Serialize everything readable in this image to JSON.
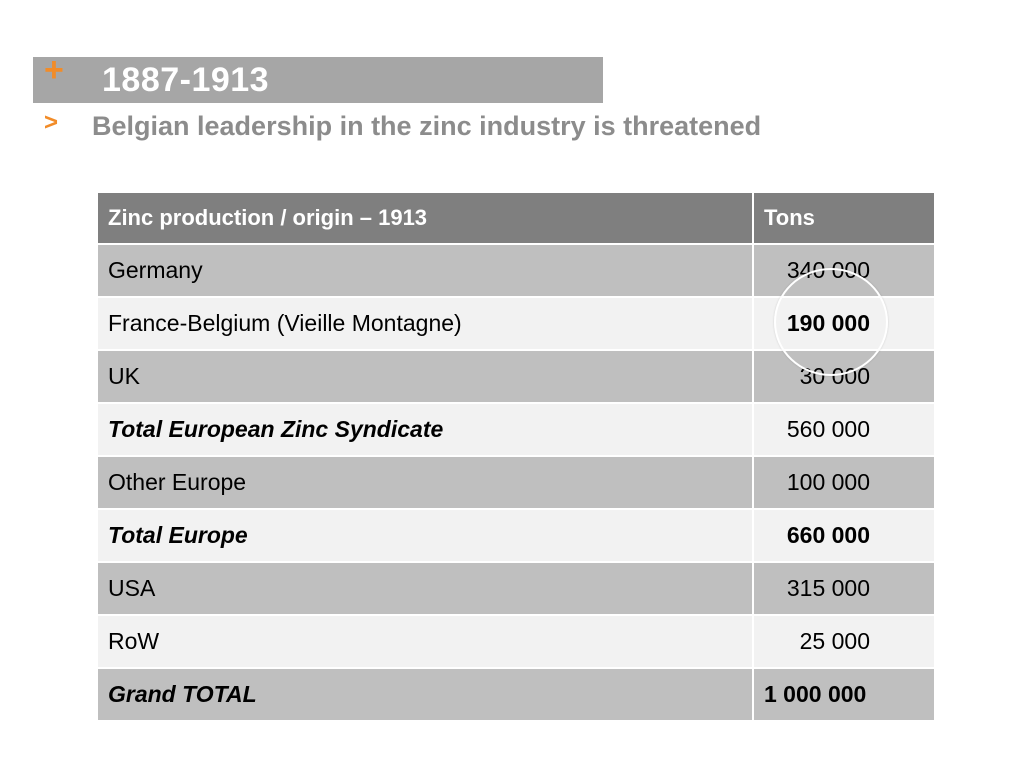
{
  "header": {
    "plus_symbol": "+",
    "title": "1887-1913",
    "chevron_symbol": ">",
    "subtitle": "Belgian leadership in the zinc industry is threatened"
  },
  "table": {
    "columns": [
      "Zinc production / origin – 1913",
      "Tons"
    ],
    "rows": [
      {
        "label": "Germany",
        "tons": "340 000"
      },
      {
        "label": "France-Belgium (Vieille Montagne)",
        "tons": "190 000"
      },
      {
        "label": "UK",
        "tons": "30 000"
      },
      {
        "label": "Total European Zinc Syndicate",
        "tons": "560 000"
      },
      {
        "label": "Other Europe",
        "tons": "100 000"
      },
      {
        "label": "Total Europe",
        "tons": "660 000"
      },
      {
        "label": "USA",
        "tons": "315 000"
      },
      {
        "label": "RoW",
        "tons": "25 000"
      },
      {
        "label": "Grand TOTAL",
        "tons": "1 000 000"
      }
    ]
  },
  "colors": {
    "accent": "#f28c28",
    "title_bar": "#a6a6a6",
    "header_row": "#7f7f7f",
    "row_dark": "#bfbfbf",
    "row_light": "#f2f2f2"
  }
}
